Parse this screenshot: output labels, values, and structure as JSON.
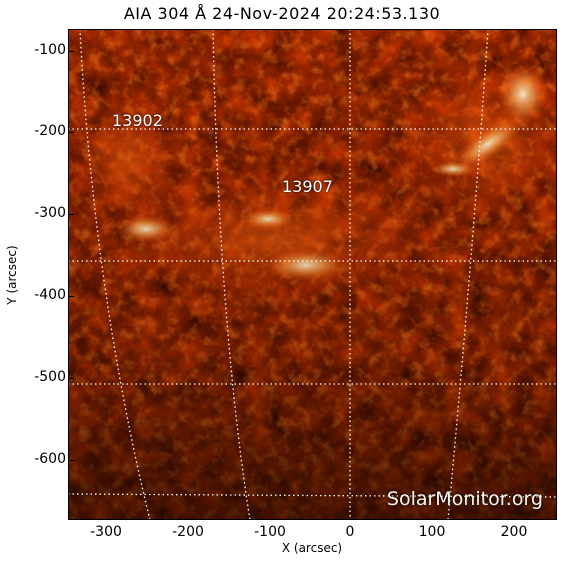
{
  "title": "AIA 304 Å 24-Nov-2024 20:24:53.130",
  "xlabel": "X (arcsec)",
  "ylabel": "Y (arcsec)",
  "x_ticks": [
    "-300",
    "-200",
    "-100",
    "0",
    "100",
    "200"
  ],
  "y_ticks": [
    "-100",
    "-200",
    "-300",
    "-400",
    "-500",
    "-600"
  ],
  "active_regions": [
    {
      "label": "13902"
    },
    {
      "label": "13907"
    }
  ],
  "watermark": "SolarMonitor.org",
  "colors": {
    "background": "#ffffff",
    "plasma_dark": "#2a0500",
    "plasma_mid": "#b52a00",
    "plasma_bright": "#ffcf90",
    "grid": "#ffffff"
  }
}
